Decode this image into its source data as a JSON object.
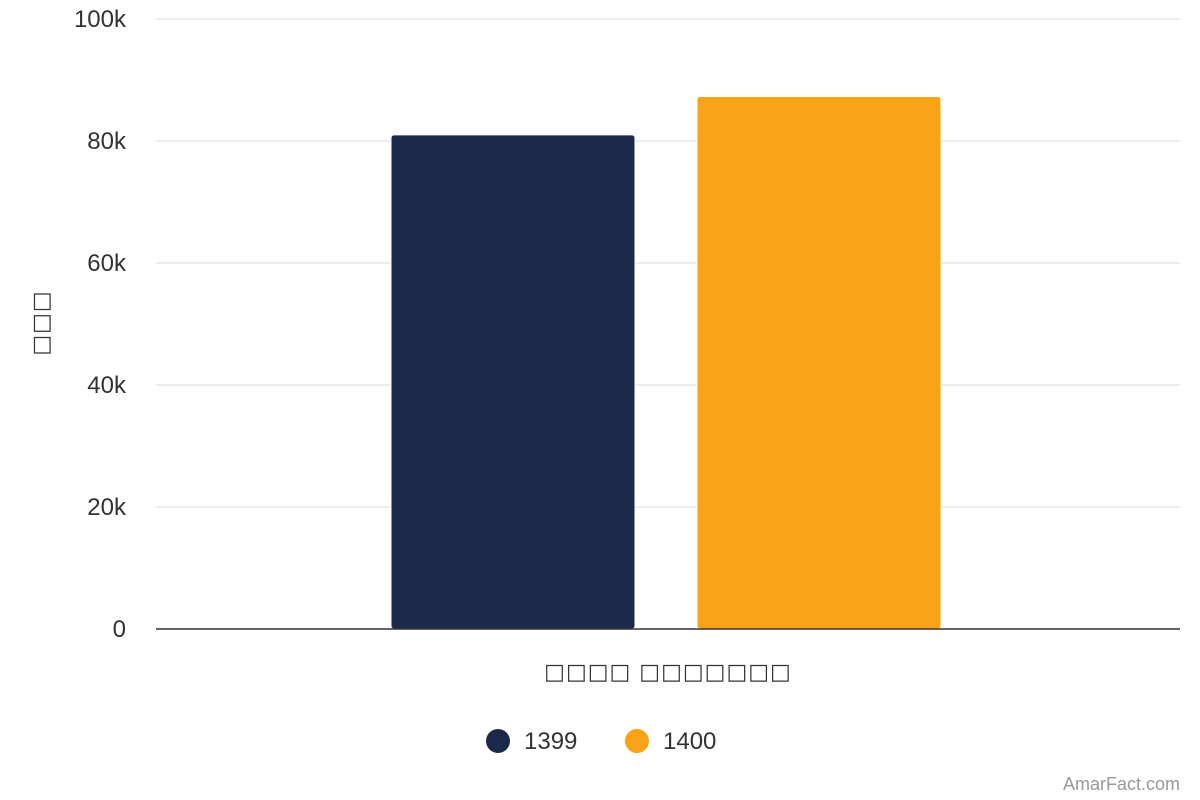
{
  "chart_data": {
    "type": "bar",
    "categories": [
      "□□□□ □□□□□□□"
    ],
    "series": [
      {
        "name": "1399",
        "values": [
          81000
        ],
        "color": "#1b2a4b"
      },
      {
        "name": "1400",
        "values": [
          87300
        ],
        "color": "#faa316"
      }
    ],
    "xlabel": "□□□□ □□□□□□□",
    "ylabel": "□□□",
    "ylim": [
      0,
      100000
    ],
    "yticks": [
      {
        "value": 0,
        "label": "0"
      },
      {
        "value": 20000,
        "label": "20k"
      },
      {
        "value": 40000,
        "label": "40k"
      },
      {
        "value": 60000,
        "label": "60k"
      },
      {
        "value": 80000,
        "label": "80k"
      },
      {
        "value": 100000,
        "label": "100k"
      }
    ],
    "grid": true,
    "legend": "bottom-center"
  },
  "credit": "AmarFact.com"
}
